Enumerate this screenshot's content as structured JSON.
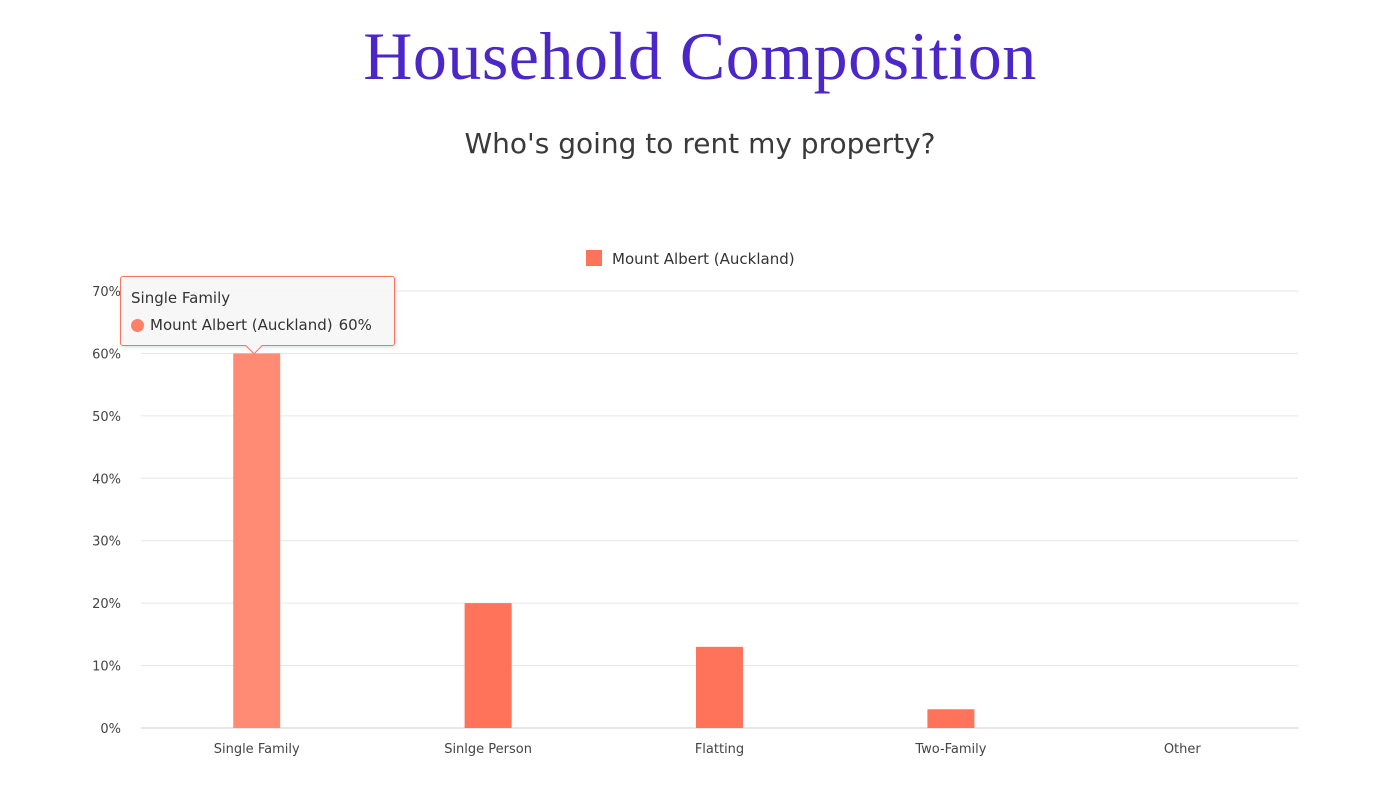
{
  "header": {
    "title": "Household Composition",
    "subtitle": "Who's going to rent my property?"
  },
  "colors": {
    "title": "#4b26c9",
    "bar": "#ff735a",
    "bar_highlight": "#ff8b74",
    "grid": "#e6e6e6",
    "axis": "#cccccc"
  },
  "chart_data": {
    "type": "bar",
    "categories": [
      "Single Family",
      "Sinlge Person",
      "Flatting",
      "Two-Family",
      "Other"
    ],
    "series": [
      {
        "name": "Mount Albert (Auckland)",
        "values": [
          60,
          20,
          13,
          3,
          0
        ]
      }
    ],
    "ylim": [
      0,
      70
    ],
    "yticks": [
      "0%",
      "10%",
      "20%",
      "30%",
      "40%",
      "50%",
      "60%",
      "70%"
    ],
    "grid": true,
    "legend": "top-center",
    "highlighted_index": 0
  },
  "tooltip": {
    "title": "Single Family",
    "series_label": "Mount Albert (Auckland)",
    "value_text": "60%"
  }
}
